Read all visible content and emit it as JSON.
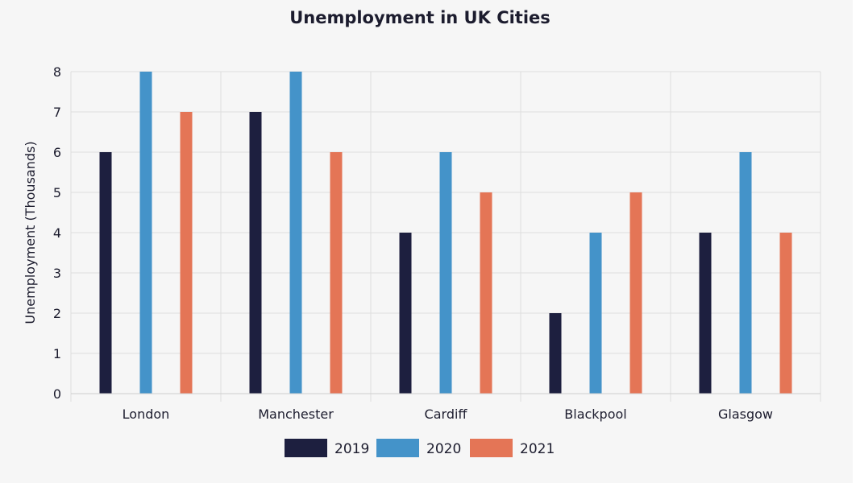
{
  "chart_data": {
    "type": "bar",
    "title": "Unemployment in UK Cities",
    "xlabel": "",
    "ylabel": "Unemployment (Thousands)",
    "categories": [
      "London",
      "Manchester",
      "Cardiff",
      "Blackpool",
      "Glasgow"
    ],
    "series": [
      {
        "name": "2019",
        "color": "#1d1f3f",
        "values": [
          6,
          7,
          4,
          2,
          4
        ]
      },
      {
        "name": "2020",
        "color": "#4493c9",
        "values": [
          8,
          8,
          6,
          4,
          6
        ]
      },
      {
        "name": "2021",
        "color": "#e47556",
        "values": [
          7,
          6,
          5,
          5,
          4
        ]
      }
    ],
    "ylim": [
      0,
      8
    ],
    "yticks": [
      0,
      1,
      2,
      3,
      4,
      5,
      6,
      7,
      8
    ],
    "grid": true,
    "legend_position": "bottom"
  }
}
